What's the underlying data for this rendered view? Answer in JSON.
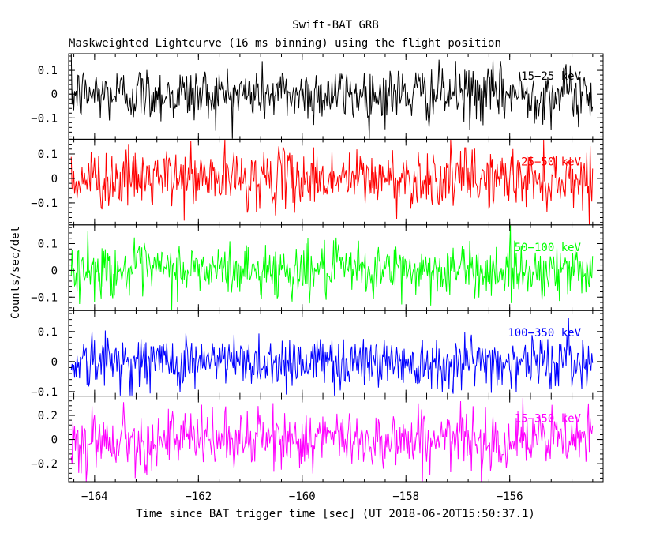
{
  "chart_data": {
    "type": "line",
    "title": "Swift-BAT GRB",
    "subtitle": "Maskweighted Lightcurve (16 ms binning) using the flight position",
    "xlabel": "Time since BAT trigger time [sec] (UT 2018-06-20T15:50:37.1)",
    "ylabel": "Counts/sec/det",
    "xlim": [
      -164.5,
      -154.2
    ],
    "x_range_data": [
      -164.45,
      -154.4
    ],
    "x_ticks": [
      -164,
      -162,
      -160,
      -158,
      -156
    ],
    "x_tick_labels": [
      "−164",
      "−162",
      "−160",
      "−158",
      "−156"
    ],
    "bin_size_sec": 0.016,
    "panels": [
      {
        "name": "15-25 keV",
        "label": "15−25 keV",
        "color": "#000000",
        "ylim": [
          -0.19,
          0.17
        ],
        "yticks": [
          -0.1,
          0,
          0.1
        ],
        "ytick_labels": [
          "−0.1",
          "0",
          "0.1"
        ],
        "amplitude": 0.06
      },
      {
        "name": "25-50 keV",
        "label": "25−50 keV",
        "color": "#ff0000",
        "ylim": [
          -0.19,
          0.16
        ],
        "yticks": [
          -0.1,
          0,
          0.1
        ],
        "ytick_labels": [
          "−0.1",
          "0",
          "0.1"
        ],
        "amplitude": 0.06
      },
      {
        "name": "50-100 keV",
        "label": "50−100 keV",
        "color": "#00ff00",
        "ylim": [
          -0.15,
          0.17
        ],
        "yticks": [
          -0.1,
          0,
          0.1
        ],
        "ytick_labels": [
          "−0.1",
          "0",
          "0.1"
        ],
        "amplitude": 0.05
      },
      {
        "name": "100-350 keV",
        "label": "100−350 keV",
        "color": "#0000ff",
        "ylim": [
          -0.115,
          0.17
        ],
        "yticks": [
          -0.1,
          0,
          0.1
        ],
        "ytick_labels": [
          "−0.1",
          "0",
          "0.1"
        ],
        "amplitude": 0.045
      },
      {
        "name": "15-350 keV",
        "label": "15−350 keV",
        "color": "#ff00ff",
        "ylim": [
          -0.35,
          0.36
        ],
        "yticks": [
          -0.2,
          0,
          0.2
        ],
        "ytick_labels": [
          "−0.2",
          "0",
          "0.2"
        ],
        "amplitude": 0.12
      }
    ]
  }
}
